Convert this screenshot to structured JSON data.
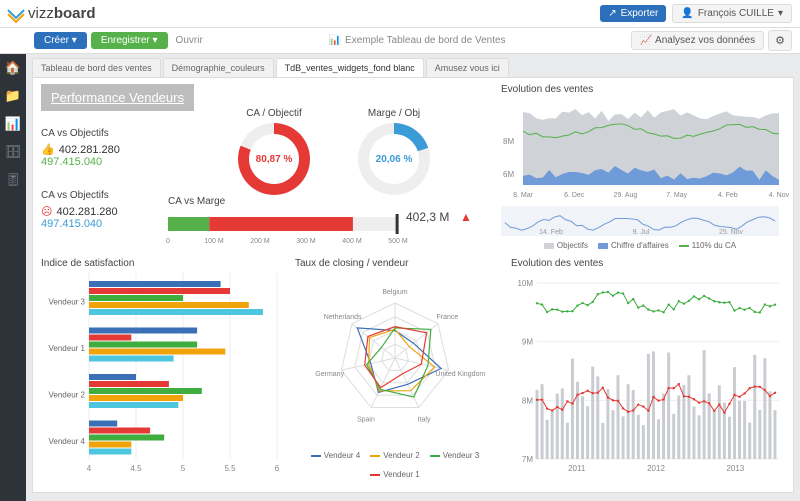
{
  "brand": {
    "name_light": "vizz",
    "name_bold": "board"
  },
  "topbar": {
    "export": "Exporter",
    "user": "François CUILLE"
  },
  "toolbar": {
    "create": "Créer",
    "save": "Enregistrer",
    "open": "Ouvrir",
    "dash_title": "Exemple Tableau de bord de Ventes",
    "analyze": "Analysez vos données"
  },
  "tabs": [
    {
      "label": "Tableau de bord des ventes",
      "active": false
    },
    {
      "label": "Démographie_couleurs",
      "active": false
    },
    {
      "label": "TdB_ventes_widgets_fond blanc",
      "active": true
    },
    {
      "label": "Amusez vous ici",
      "active": false
    }
  ],
  "panels": {
    "perf_title": "Performance Vendeurs",
    "kpi1": {
      "title": "CA vs Objectifs",
      "val1": "402.281.280",
      "val2": "497.415.040",
      "icon_color": "#56b14b"
    },
    "kpi2": {
      "title": "CA vs Objectifs",
      "val1": "402.281.280",
      "val2": "497.415.040",
      "icon_color": "#e53935"
    },
    "donut_ca": {
      "title": "CA / Objectif",
      "value": "80,87 %",
      "pct": 81,
      "color": "#e53935"
    },
    "donut_marge": {
      "title": "Marge / Obj",
      "value": "20,06 %",
      "pct": 20,
      "color": "#3a9bd6"
    },
    "ca_marge": {
      "title": "CA vs Marge",
      "summary": "402,3 M",
      "alert": true,
      "target": 497,
      "xmax": 500,
      "xticks": [
        0,
        "100 M",
        "200 M",
        "300 M",
        "400 M",
        "500 M"
      ],
      "segments": [
        {
          "color": "#56b14b",
          "from": 0,
          "to": 90
        },
        {
          "color": "#e53935",
          "from": 90,
          "to": 402
        }
      ]
    },
    "evo1": {
      "title": "Evolution des ventes",
      "yticks": [
        "8M",
        "6M"
      ],
      "xticks": [
        "8. Mar",
        "6. Dec",
        "29. Aug",
        "7. May",
        "4. Feb",
        "4. Nov"
      ],
      "colors": {
        "objectifs": "#cfd2d6",
        "ca": "#6f9bd8",
        "line110": "#56b14b"
      },
      "spark_xaxis": [
        "14. Feb",
        "9. Jul",
        "25. Nov"
      ],
      "legend": [
        "Objectifs",
        "Chiffre d'affaires",
        "110% du CA"
      ]
    },
    "satisfaction": {
      "title": "Indice de satisfaction",
      "categories": [
        "Vendeur 3",
        "Vendeur 1",
        "Vendeur 2",
        "Vendeur 4"
      ],
      "series_colors": [
        "#3b6fb6",
        "#e53935",
        "#3fae3f",
        "#f0a30a",
        "#4fc6e0"
      ],
      "xticks": [
        4,
        4.5,
        5,
        5.5,
        6
      ],
      "data": [
        [
          5.4,
          5.5,
          5.0,
          5.7,
          5.85
        ],
        [
          5.15,
          4.45,
          5.15,
          5.45,
          4.9
        ],
        [
          4.5,
          4.85,
          5.2,
          5.0,
          4.95
        ],
        [
          4.3,
          4.65,
          4.8,
          4.45,
          4.45
        ]
      ]
    },
    "radar": {
      "title": "Taux de closing / vendeur",
      "axes": [
        "Belgium",
        "France",
        "United Kingdom",
        "Italy",
        "Spain",
        "Germany",
        "Netherlands"
      ],
      "legend": [
        "Vendeur 4",
        "Vendeur 2",
        "Vendeur 3",
        "Vendeur 1"
      ],
      "colors": [
        "#3b6fb6",
        "#f0a30a",
        "#3fae3f",
        "#e53935"
      ]
    },
    "evo2": {
      "title": "Evolution des ventes",
      "yticks": [
        "10M",
        "9M",
        "8M",
        "7M"
      ],
      "xticks": [
        "2011",
        "2012",
        "2013"
      ],
      "colors": {
        "green": "#3fae3f",
        "red": "#e53935",
        "bars": "#c9ccd0"
      }
    }
  }
}
